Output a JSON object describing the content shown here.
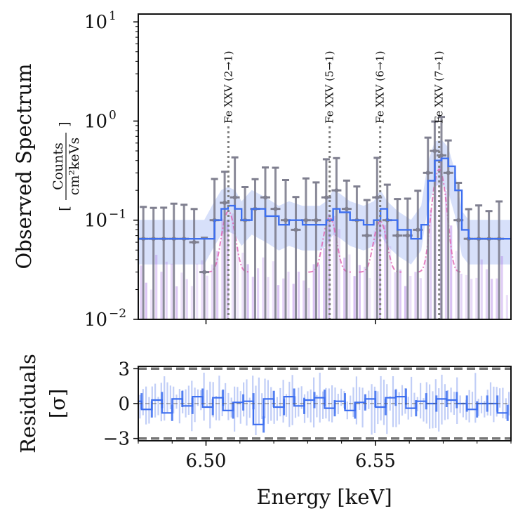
{
  "chart_data": [
    {
      "type": "line",
      "title": "",
      "xlabel": "",
      "ylabel": "Observed Spectrum",
      "ylabel_units": {
        "open": "[",
        "numerator": "Counts",
        "denominator": "cm²keVs",
        "close": "]"
      },
      "yscale": "log",
      "ylim": [
        0.01,
        12
      ],
      "xlim": [
        6.48,
        6.59
      ],
      "y_ticks": [
        {
          "value": 0.01,
          "base": "10",
          "exp": "−2"
        },
        {
          "value": 0.1,
          "base": "10",
          "exp": "−1"
        },
        {
          "value": 1,
          "base": "10",
          "exp": "0"
        },
        {
          "value": 10,
          "base": "10",
          "exp": "1"
        }
      ],
      "line_markers": [
        {
          "energy": 6.5066,
          "label": "Fe XXV (2→1)"
        },
        {
          "energy": 6.5365,
          "label": "Fe XXV (5→1)"
        },
        {
          "energy": 6.5514,
          "label": "Fe XXV (6→1)"
        },
        {
          "energy": 6.5688,
          "label": "Fe XXV (7→1)"
        }
      ],
      "colors": {
        "data": "#7f7f8f",
        "model": "#3d6ff0",
        "band": "#b7c6f6",
        "component": "#9b5fe0",
        "component_dash": "#e060b0",
        "marker": "#7f7f7f"
      },
      "series": [
        {
          "name": "observed counts",
          "x": [
            6.4815,
            6.4845,
            6.4875,
            6.4905,
            6.4935,
            6.4965,
            6.4995,
            6.5025,
            6.5055,
            6.5085,
            6.5115,
            6.5145,
            6.5175,
            6.5205,
            6.5235,
            6.5265,
            6.5295,
            6.5325,
            6.5355,
            6.5385,
            6.5415,
            6.5445,
            6.5475,
            6.5505,
            6.5535,
            6.5565,
            6.5595,
            6.5625,
            6.5655,
            6.5675,
            6.5695,
            6.5715,
            6.5745,
            6.5775,
            6.5805,
            6.5835,
            6.5865
          ],
          "values": [
            0.065,
            0.065,
            0.065,
            0.065,
            0.065,
            0.06,
            0.03,
            0.1,
            0.15,
            0.17,
            0.1,
            0.13,
            0.17,
            0.13,
            0.1,
            0.08,
            0.1,
            0.1,
            0.17,
            0.2,
            0.13,
            0.1,
            0.07,
            0.17,
            0.1,
            0.07,
            0.07,
            0.08,
            0.3,
            0.5,
            0.45,
            0.3,
            0.1,
            0.065,
            0.065,
            0.065,
            0.065
          ]
        },
        {
          "name": "model",
          "x": [
            6.48,
            6.4995,
            6.5025,
            6.5045,
            6.5065,
            6.5085,
            6.5105,
            6.5135,
            6.5175,
            6.5215,
            6.5245,
            6.5285,
            6.5335,
            6.5355,
            6.5375,
            6.5395,
            6.5425,
            6.5465,
            6.5495,
            6.5515,
            6.5535,
            6.5565,
            6.5605,
            6.5635,
            6.5655,
            6.5675,
            6.5695,
            6.5715,
            6.5735,
            6.5755,
            6.5775,
            6.5805,
            6.59
          ],
          "values": [
            0.065,
            0.065,
            0.1,
            0.13,
            0.14,
            0.13,
            0.1,
            0.13,
            0.11,
            0.09,
            0.1,
            0.09,
            0.09,
            0.1,
            0.13,
            0.12,
            0.1,
            0.09,
            0.1,
            0.13,
            0.1,
            0.08,
            0.065,
            0.09,
            0.25,
            0.4,
            0.42,
            0.35,
            0.2,
            0.08,
            0.065,
            0.065,
            0.065
          ]
        }
      ]
    },
    {
      "type": "line",
      "title": "",
      "xlabel": "Energy [keV]",
      "ylabel": "Residuals",
      "ylabel_units": "[σ]",
      "ylim": [
        -3.2,
        3.2
      ],
      "xlim": [
        6.48,
        6.59
      ],
      "y_ticks": [
        {
          "value": 3,
          "label": "3"
        },
        {
          "value": 0,
          "label": "0"
        },
        {
          "value": -3,
          "label": "−3"
        }
      ],
      "x_ticks": [
        {
          "value": 6.5,
          "label": "6.50"
        },
        {
          "value": 6.55,
          "label": "6.55"
        }
      ],
      "reference_lines": [
        3,
        -3
      ],
      "series": [
        {
          "name": "residuals",
          "x": [
            6.481,
            6.484,
            6.487,
            6.49,
            6.493,
            6.496,
            6.499,
            6.502,
            6.505,
            6.508,
            6.511,
            6.514,
            6.517,
            6.52,
            6.523,
            6.526,
            6.529,
            6.532,
            6.535,
            6.538,
            6.541,
            6.544,
            6.547,
            6.55,
            6.553,
            6.556,
            6.559,
            6.562,
            6.565,
            6.568,
            6.571,
            6.574,
            6.577,
            6.58,
            6.583,
            6.586,
            6.589
          ],
          "values": [
            0.2,
            -0.5,
            0.3,
            -0.8,
            0.4,
            -0.2,
            0.6,
            -0.3,
            0.5,
            -0.6,
            0.1,
            0.2,
            -1.8,
            0.4,
            -0.3,
            0.6,
            -0.2,
            0.3,
            0.5,
            -0.4,
            0.2,
            -0.6,
            0.1,
            0.4,
            -0.3,
            0.5,
            0.6,
            -0.4,
            0.2,
            0.0,
            0.4,
            0.3,
            0.0,
            -0.5,
            0.0,
            0.0,
            -0.8
          ]
        }
      ]
    }
  ]
}
